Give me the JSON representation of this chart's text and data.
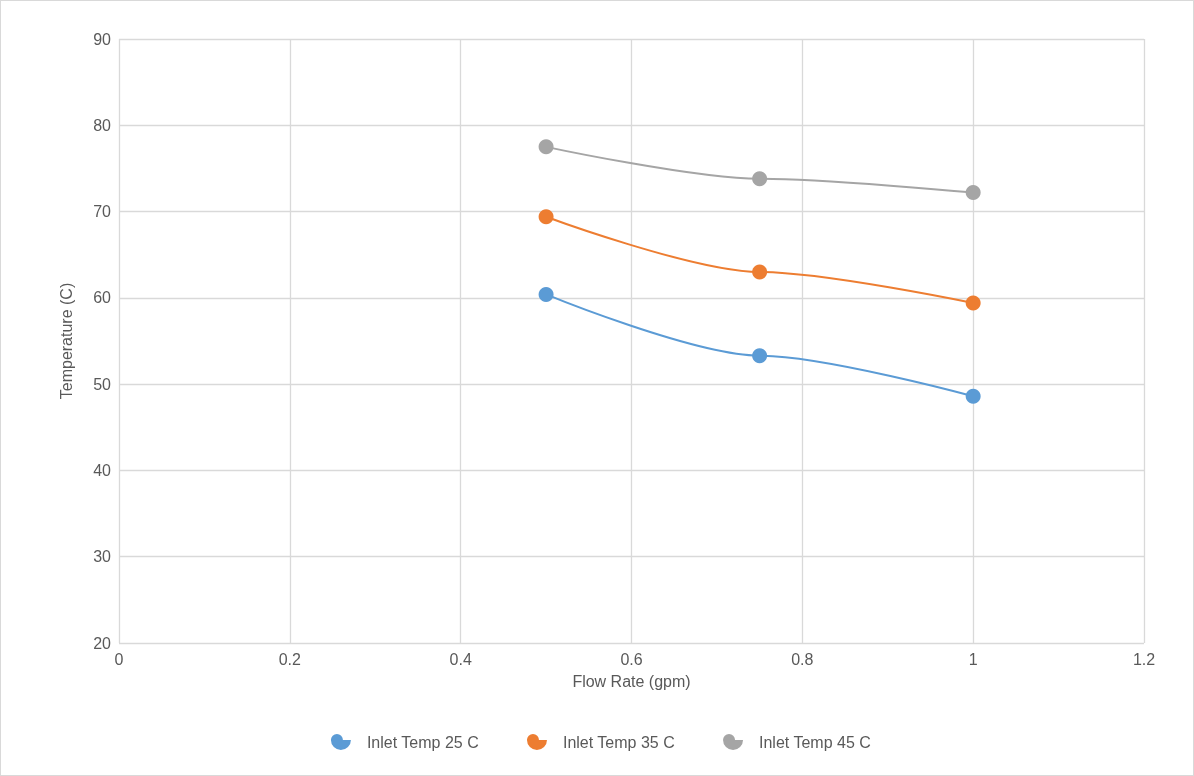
{
  "chart_data": {
    "type": "line",
    "xlabel": "Flow Rate (gpm)",
    "ylabel": "Temperature (C)",
    "x": [
      0.5,
      0.75,
      1
    ],
    "series": [
      {
        "name": "Inlet Temp 25 C",
        "color": "#5b9bd5",
        "values": [
          60.4,
          53.3,
          48.6
        ]
      },
      {
        "name": "Inlet Temp 35 C",
        "color": "#ed7d31",
        "values": [
          69.4,
          63,
          59.4
        ]
      },
      {
        "name": "Inlet Temp 45 C",
        "color": "#a5a5a5",
        "values": [
          77.5,
          73.8,
          72.2
        ]
      }
    ],
    "xlim": [
      0,
      1.2
    ],
    "xticks": [
      0,
      0.2,
      0.4,
      0.6,
      0.8,
      1,
      1.2
    ],
    "ylim": [
      20,
      90
    ],
    "yticks": [
      20,
      30,
      40,
      50,
      60,
      70,
      80,
      90
    ],
    "grid": true,
    "legend": "bottom",
    "marker": "circle",
    "line_style": "solid"
  }
}
